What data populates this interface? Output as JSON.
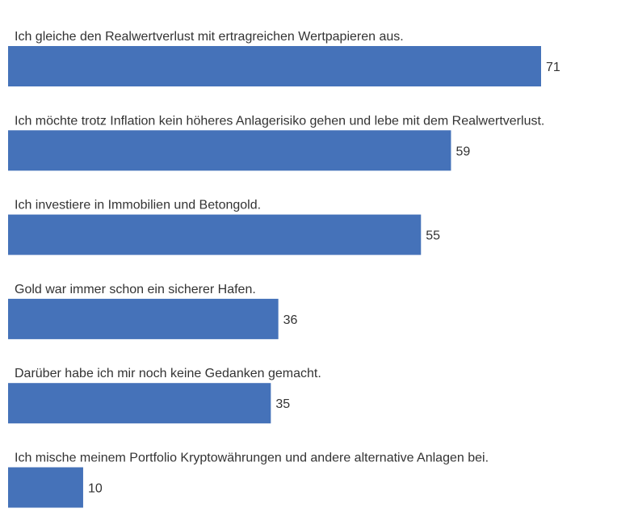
{
  "chart_data": {
    "type": "bar",
    "orientation": "horizontal",
    "categories": [
      "Ich gleiche den Realwertverlust mit ertragreichen Wertpapieren aus.",
      "Ich möchte trotz Inflation kein höheres Anlagerisiko gehen und lebe mit dem Realwertverlust.",
      "Ich investiere in Immobilien und Betongold.",
      "Gold war immer schon ein sicherer Hafen.",
      "Darüber habe ich mir noch keine Gedanken gemacht.",
      "Ich mische meinem Portfolio Kryptowährungen und andere alternative Anlagen bei."
    ],
    "values": [
      71,
      59,
      55,
      36,
      35,
      10
    ],
    "value_labels": [
      "71",
      "59",
      "55",
      "36",
      "35",
      "10"
    ],
    "bar_color": "#4572b9",
    "title": "",
    "xlabel": "",
    "ylabel": "",
    "grid": false,
    "legend": "none"
  }
}
